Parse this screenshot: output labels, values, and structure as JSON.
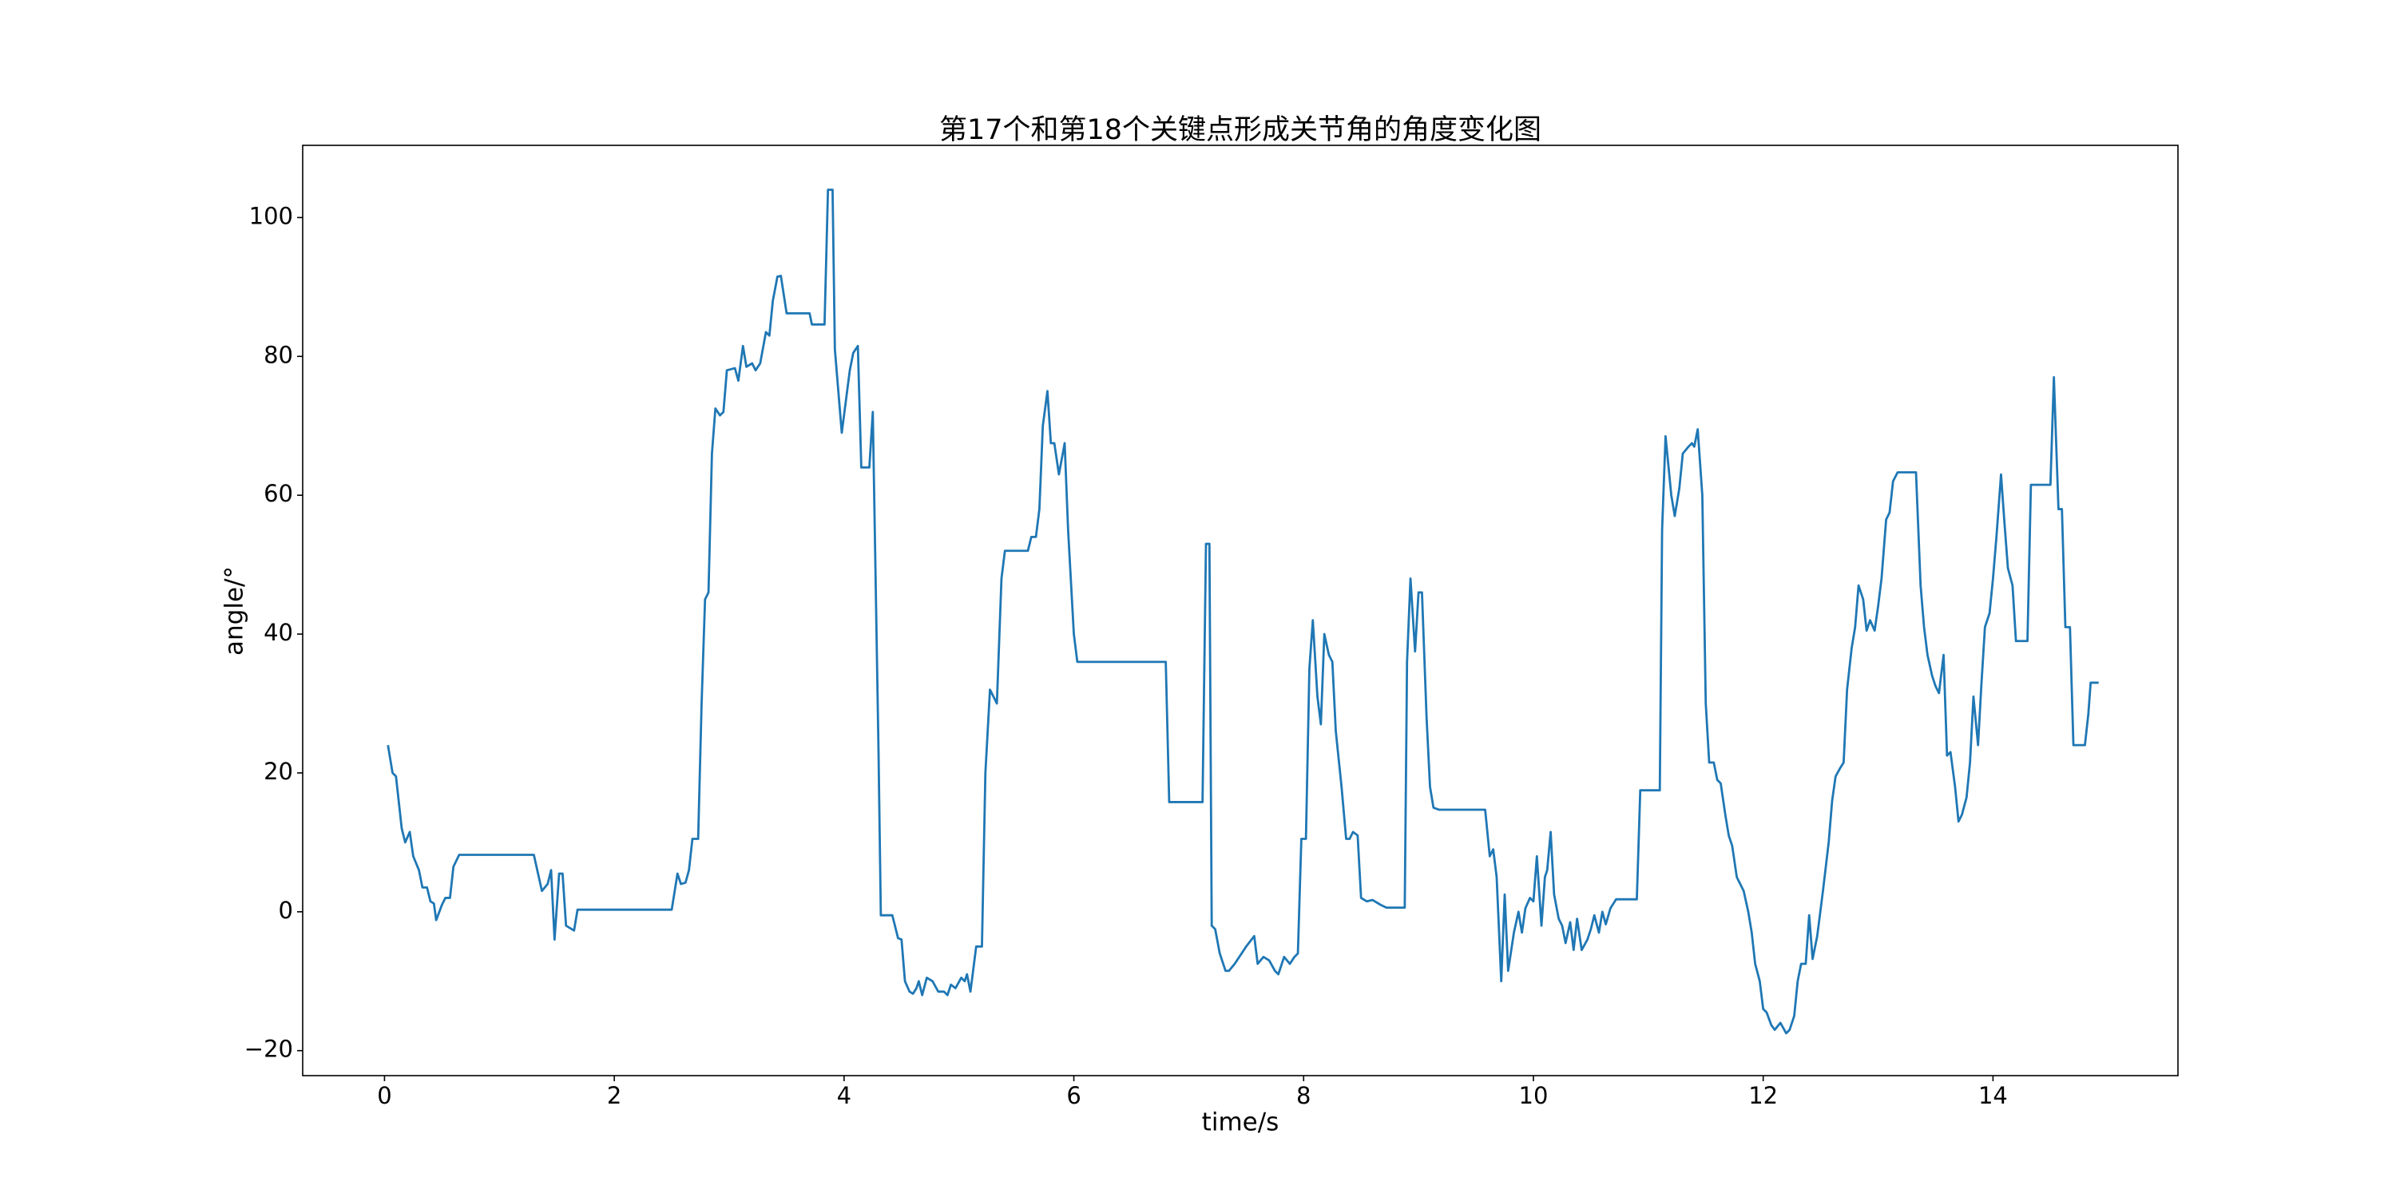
{
  "chart_data": {
    "type": "line",
    "title": "第17个和第18个关键点形成关节角的角度变化图",
    "x_label": "time/s",
    "y_label": "angle/°",
    "color": "#1f77b4",
    "xlim": [
      -0.712,
      15.61
    ],
    "ylim": [
      -23.6,
      110.4
    ],
    "xticks": [
      0,
      2,
      4,
      6,
      8,
      10,
      12,
      14
    ],
    "yticks": [
      {
        "value": -20,
        "label": "−20"
      },
      0,
      20,
      40,
      60,
      80,
      100
    ],
    "x": [
      0.03,
      0.07,
      0.1,
      0.15,
      0.18,
      0.22,
      0.25,
      0.3,
      0.33,
      0.37,
      0.4,
      0.43,
      0.45,
      0.5,
      0.53,
      0.57,
      0.6,
      0.65,
      1.3,
      1.37,
      1.42,
      1.45,
      1.48,
      1.52,
      1.55,
      1.58,
      1.65,
      1.68,
      2.5,
      2.55,
      2.58,
      2.62,
      2.65,
      2.68,
      2.73,
      2.76,
      2.79,
      2.82,
      2.85,
      2.88,
      2.92,
      2.95,
      2.98,
      3.05,
      3.08,
      3.12,
      3.15,
      3.2,
      3.23,
      3.27,
      3.32,
      3.35,
      3.38,
      3.42,
      3.45,
      3.5,
      3.7,
      3.72,
      3.83,
      3.86,
      3.9,
      3.92,
      3.98,
      4.05,
      4.08,
      4.12,
      4.15,
      4.22,
      4.25,
      4.3,
      4.32,
      4.42,
      4.47,
      4.5,
      4.53,
      4.57,
      4.6,
      4.63,
      4.65,
      4.68,
      4.72,
      4.77,
      4.82,
      4.87,
      4.9,
      4.93,
      4.97,
      5.02,
      5.05,
      5.07,
      5.1,
      5.15,
      5.2,
      5.23,
      5.27,
      5.3,
      5.33,
      5.37,
      5.4,
      5.6,
      5.63,
      5.67,
      5.7,
      5.73,
      5.77,
      5.8,
      5.83,
      5.87,
      5.92,
      5.95,
      6.0,
      6.03,
      6.8,
      6.83,
      7.12,
      7.15,
      7.18,
      7.2,
      7.23,
      7.27,
      7.32,
      7.35,
      7.4,
      7.5,
      7.57,
      7.6,
      7.65,
      7.7,
      7.75,
      7.78,
      7.83,
      7.88,
      7.92,
      7.95,
      7.98,
      8.02,
      8.05,
      8.08,
      8.12,
      8.15,
      8.18,
      8.22,
      8.25,
      8.28,
      8.33,
      8.37,
      8.4,
      8.43,
      8.47,
      8.5,
      8.55,
      8.6,
      8.67,
      8.72,
      8.88,
      8.9,
      8.93,
      8.97,
      9.0,
      9.03,
      9.07,
      9.1,
      9.13,
      9.18,
      9.58,
      9.62,
      9.65,
      9.68,
      9.72,
      9.75,
      9.78,
      9.83,
      9.87,
      9.9,
      9.93,
      9.97,
      10.0,
      10.03,
      10.07,
      10.1,
      10.12,
      10.15,
      10.18,
      10.22,
      10.25,
      10.28,
      10.32,
      10.35,
      10.38,
      10.42,
      10.47,
      10.5,
      10.53,
      10.57,
      10.6,
      10.63,
      10.67,
      10.72,
      10.9,
      10.93,
      11.1,
      11.12,
      11.15,
      11.2,
      11.23,
      11.27,
      11.3,
      11.35,
      11.38,
      11.4,
      11.43,
      11.47,
      11.5,
      11.53,
      11.57,
      11.6,
      11.63,
      11.67,
      11.7,
      11.73,
      11.77,
      11.8,
      11.83,
      11.87,
      11.9,
      11.93,
      11.97,
      12.0,
      12.03,
      12.07,
      12.1,
      12.15,
      12.2,
      12.23,
      12.27,
      12.3,
      12.33,
      12.37,
      12.4,
      12.43,
      12.47,
      12.52,
      12.57,
      12.6,
      12.63,
      12.67,
      12.7,
      12.73,
      12.77,
      12.8,
      12.83,
      12.87,
      12.9,
      12.93,
      12.97,
      13.0,
      13.03,
      13.07,
      13.1,
      13.13,
      13.17,
      13.33,
      13.37,
      13.4,
      13.43,
      13.47,
      13.5,
      13.53,
      13.57,
      13.6,
      13.63,
      13.67,
      13.7,
      13.73,
      13.77,
      13.8,
      13.83,
      13.87,
      13.9,
      13.93,
      13.97,
      14.0,
      14.03,
      14.07,
      14.1,
      14.13,
      14.17,
      14.2,
      14.3,
      14.33,
      14.5,
      14.53,
      14.57,
      14.6,
      14.63,
      14.67,
      14.7,
      14.8,
      14.83,
      14.85,
      14.92
    ],
    "values": [
      24,
      20,
      19.5,
      12,
      10,
      11.5,
      8,
      6,
      3.5,
      3.5,
      1.5,
      1.2,
      -1.2,
      1,
      2,
      2,
      6.5,
      8.2,
      8.2,
      3,
      4,
      6,
      -4,
      5.5,
      5.5,
      -2,
      -2.7,
      0.3,
      0.3,
      5.5,
      4,
      4.2,
      6,
      10.5,
      10.5,
      30,
      45,
      46,
      66,
      72.5,
      71.5,
      72,
      78,
      78.3,
      76.5,
      81.5,
      78.5,
      79,
      78,
      79,
      83.5,
      83,
      88,
      91.5,
      91.6,
      86.2,
      86.2,
      84.6,
      84.6,
      104,
      104,
      81,
      69,
      78,
      80.5,
      81.5,
      64,
      64,
      72,
      23,
      -0.5,
      -0.5,
      -3.8,
      -4,
      -10,
      -11.5,
      -11.8,
      -11,
      -10,
      -12,
      -9.5,
      -10,
      -11.5,
      -11.5,
      -12,
      -10.5,
      -11,
      -9.5,
      -10,
      -9,
      -11.5,
      -5,
      -5,
      20,
      32,
      31,
      30,
      48,
      52,
      52,
      54,
      54,
      58,
      70,
      75,
      67.5,
      67.5,
      63,
      67.5,
      55,
      40,
      36,
      36,
      15.8,
      15.8,
      53,
      53,
      -2,
      -2.5,
      -6,
      -8.5,
      -8.5,
      -7.5,
      -5,
      -3.5,
      -7.5,
      -6.5,
      -7,
      -8.5,
      -9,
      -6.5,
      -7.5,
      -6.5,
      -6,
      10.5,
      10.5,
      35,
      42,
      31,
      27,
      40,
      37,
      36,
      26,
      18,
      10.5,
      10.5,
      11.5,
      11,
      2,
      1.5,
      1.7,
      1,
      0.6,
      0.6,
      36,
      48,
      37.5,
      46,
      46,
      28,
      18,
      15,
      14.7,
      14.7,
      8,
      9,
      5,
      -10,
      2.5,
      -8.5,
      -3,
      0,
      -3,
      0.5,
      2,
      1.5,
      8,
      -2,
      5,
      6,
      11.5,
      2.5,
      -1,
      -2,
      -4.5,
      -1.5,
      -5.5,
      -1,
      -5.5,
      -4,
      -2.5,
      -0.5,
      -3,
      0,
      -1.8,
      0.5,
      1.8,
      1.8,
      17.5,
      17.5,
      55,
      68.5,
      60,
      57,
      61,
      66,
      67,
      67.5,
      67,
      69.5,
      60,
      30,
      21.5,
      21.5,
      19,
      18.5,
      14,
      11,
      9.5,
      5,
      4,
      3,
      0,
      -3,
      -7.5,
      -10,
      -14,
      -14.5,
      -16.3,
      -17,
      -16,
      -17.5,
      -17,
      -15,
      -10,
      -7.5,
      -7.5,
      -0.5,
      -6.8,
      -3.5,
      3,
      10,
      16,
      19.5,
      20.7,
      21.5,
      32,
      38,
      41,
      47,
      45,
      40.5,
      42,
      40.5,
      44,
      48,
      56.5,
      57.5,
      62,
      63.3,
      63.3,
      47,
      41,
      37,
      34,
      32.5,
      31.5,
      37,
      22.5,
      23,
      18,
      13,
      14,
      16.5,
      21.5,
      31,
      24,
      33,
      41,
      43,
      48,
      54,
      63,
      56,
      49.5,
      47,
      39,
      39,
      61.5,
      61.5,
      77,
      58,
      58,
      41,
      41,
      24,
      24,
      28.5,
      33,
      33
    ]
  }
}
